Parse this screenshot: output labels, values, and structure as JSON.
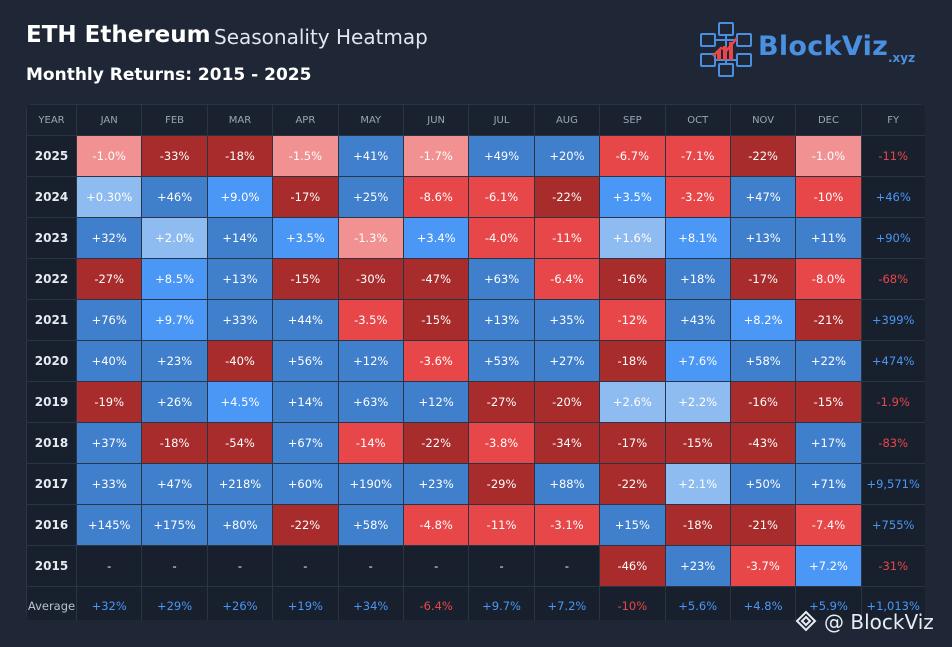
{
  "header": {
    "title": "ETH Ethereum",
    "subtitle": "Seasonality Heatmap",
    "range": "Monthly Returns: 2015 - 2025"
  },
  "brand": {
    "name": "BlockViz",
    "suffix": ".xyz",
    "watermark": "@ BlockViz"
  },
  "colors": {
    "pos_light": "#8fbcf0",
    "pos_mid": "#3f7fcc",
    "pos_bright": "#4a97f5",
    "neg_light": "#f29191",
    "neg_dark": "#a82c2c",
    "neg_bright": "#e8474a",
    "text_pos": "#4a97f5",
    "text_neg": "#e8474a"
  },
  "chart_data": {
    "type": "heatmap",
    "title": "ETH Ethereum Seasonality Heatmap",
    "subtitle": "Monthly Returns: 2015 - 2025",
    "year_header": "YEAR",
    "fy_header": "FY",
    "columns": [
      "JAN",
      "FEB",
      "MAR",
      "APR",
      "MAY",
      "JUN",
      "JUL",
      "AUG",
      "SEP",
      "OCT",
      "NOV",
      "DEC"
    ],
    "rows": [
      {
        "year": "2025",
        "values": [
          "-1.0%",
          "-33%",
          "-18%",
          "-1.5%",
          "+41%",
          "-1.7%",
          "+49%",
          "+20%",
          "-6.7%",
          "-7.1%",
          "-22%",
          "-1.0%"
        ],
        "fy": "-11%"
      },
      {
        "year": "2024",
        "values": [
          "+0.30%",
          "+46%",
          "+9.0%",
          "-17%",
          "+25%",
          "-8.6%",
          "-6.1%",
          "-22%",
          "+3.5%",
          "-3.2%",
          "+47%",
          "-10%"
        ],
        "fy": "+46%"
      },
      {
        "year": "2023",
        "values": [
          "+32%",
          "+2.0%",
          "+14%",
          "+3.5%",
          "-1.3%",
          "+3.4%",
          "-4.0%",
          "-11%",
          "+1.6%",
          "+8.1%",
          "+13%",
          "+11%"
        ],
        "fy": "+90%"
      },
      {
        "year": "2022",
        "values": [
          "-27%",
          "+8.5%",
          "+13%",
          "-15%",
          "-30%",
          "-47%",
          "+63%",
          "-6.4%",
          "-16%",
          "+18%",
          "-17%",
          "-8.0%"
        ],
        "fy": "-68%"
      },
      {
        "year": "2021",
        "values": [
          "+76%",
          "+9.7%",
          "+33%",
          "+44%",
          "-3.5%",
          "-15%",
          "+13%",
          "+35%",
          "-12%",
          "+43%",
          "+8.2%",
          "-21%"
        ],
        "fy": "+399%"
      },
      {
        "year": "2020",
        "values": [
          "+40%",
          "+23%",
          "-40%",
          "+56%",
          "+12%",
          "-3.6%",
          "+53%",
          "+27%",
          "-18%",
          "+7.6%",
          "+58%",
          "+22%"
        ],
        "fy": "+474%"
      },
      {
        "year": "2019",
        "values": [
          "-19%",
          "+26%",
          "+4.5%",
          "+14%",
          "+63%",
          "+12%",
          "-27%",
          "-20%",
          "+2.6%",
          "+2.2%",
          "-16%",
          "-15%"
        ],
        "fy": "-1.9%"
      },
      {
        "year": "2018",
        "values": [
          "+37%",
          "-18%",
          "-54%",
          "+67%",
          "-14%",
          "-22%",
          "-3.8%",
          "-34%",
          "-17%",
          "-15%",
          "-43%",
          "+17%"
        ],
        "fy": "-83%"
      },
      {
        "year": "2017",
        "values": [
          "+33%",
          "+47%",
          "+218%",
          "+60%",
          "+190%",
          "+23%",
          "-29%",
          "+88%",
          "-22%",
          "+2.1%",
          "+50%",
          "+71%"
        ],
        "fy": "+9,571%"
      },
      {
        "year": "2016",
        "values": [
          "+145%",
          "+175%",
          "+80%",
          "-22%",
          "+58%",
          "-4.8%",
          "-11%",
          "-3.1%",
          "+15%",
          "-18%",
          "-21%",
          "-7.4%"
        ],
        "fy": "+755%"
      },
      {
        "year": "2015",
        "values": [
          "-",
          "-",
          "-",
          "-",
          "-",
          "-",
          "-",
          "-",
          "-46%",
          "+23%",
          "-3.7%",
          "+7.2%"
        ],
        "fy": "-31%"
      }
    ],
    "average": {
      "label": "Average",
      "values": [
        "+32%",
        "+29%",
        "+26%",
        "+19%",
        "+34%",
        "-6.4%",
        "+9.7%",
        "+7.2%",
        "-10%",
        "+5.6%",
        "+4.8%",
        "+5.9%"
      ],
      "fy": "+1,013%"
    }
  }
}
